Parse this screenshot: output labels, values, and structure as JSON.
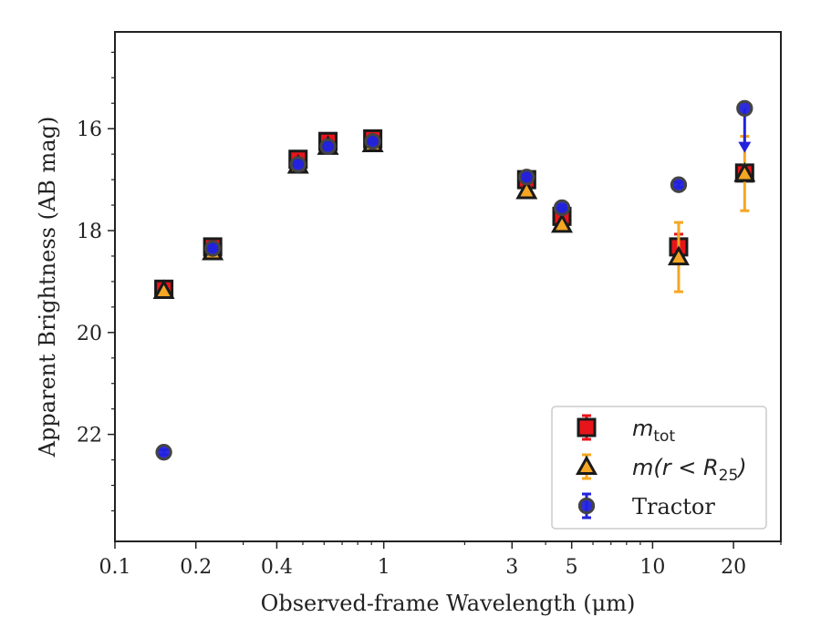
{
  "chart_data": {
    "type": "scatter",
    "xlabel": "Observed-frame Wavelength (μm)",
    "ylabel": "Apparent Brightness (AB mag)",
    "xscale": "log",
    "yinverted": true,
    "xlim": [
      0.1,
      30
    ],
    "ylim": [
      24.1,
      14.1
    ],
    "xticks": [
      {
        "value": 0.1,
        "label": "0.1"
      },
      {
        "value": 0.2,
        "label": "0.2"
      },
      {
        "value": 0.4,
        "label": "0.4"
      },
      {
        "value": 1,
        "label": "1"
      },
      {
        "value": 3,
        "label": "3"
      },
      {
        "value": 5,
        "label": "5"
      },
      {
        "value": 10,
        "label": "10"
      },
      {
        "value": 20,
        "label": "20"
      }
    ],
    "yticks": [
      {
        "value": 16,
        "label": "16"
      },
      {
        "value": 18,
        "label": "18"
      },
      {
        "value": 20,
        "label": "20"
      },
      {
        "value": 22,
        "label": "22"
      }
    ],
    "legend_position": "lower-right",
    "grid": false,
    "series": [
      {
        "name": "m_tot",
        "legend_label": {
          "base": "m",
          "sub": "tot"
        },
        "marker": "square",
        "color": "#e8141b",
        "errcolor": "#e8141b",
        "points": [
          {
            "x": 0.152,
            "y": 19.15,
            "err": 0.05
          },
          {
            "x": 0.231,
            "y": 18.32,
            "err": 0.05
          },
          {
            "x": 0.48,
            "y": 16.6,
            "err": 0.05
          },
          {
            "x": 0.62,
            "y": 16.25,
            "err": 0.08
          },
          {
            "x": 0.91,
            "y": 16.2,
            "err": 0.05
          },
          {
            "x": 3.4,
            "y": 17.0,
            "err": 0.05
          },
          {
            "x": 4.6,
            "y": 17.72,
            "err": 0.08
          },
          {
            "x": 12.5,
            "y": 18.32,
            "err": 0.25
          },
          {
            "x": 22.0,
            "y": 16.87,
            "err": 0.05
          }
        ]
      },
      {
        "name": "m(r<R25)",
        "legend_label": {
          "base": "m(r < R",
          "sub": "25",
          "tail": ")"
        },
        "marker": "triangle",
        "color": "#f5a623",
        "errcolor": "#f5a623",
        "points": [
          {
            "x": 0.152,
            "y": 19.18,
            "err": 0.05
          },
          {
            "x": 0.231,
            "y": 18.42,
            "err": 0.05
          },
          {
            "x": 0.48,
            "y": 16.72,
            "err": 0.05
          },
          {
            "x": 0.62,
            "y": 16.35,
            "err": 0.05
          },
          {
            "x": 0.91,
            "y": 16.3,
            "err": 0.05
          },
          {
            "x": 3.4,
            "y": 17.22,
            "err": 0.05
          },
          {
            "x": 4.6,
            "y": 17.88,
            "err": 0.05
          },
          {
            "x": 12.5,
            "y": 18.52,
            "err": 0.68
          },
          {
            "x": 22.0,
            "y": 16.88,
            "err": 0.73
          }
        ]
      },
      {
        "name": "Tractor",
        "legend_label": {
          "base": "Tractor"
        },
        "marker": "circle",
        "color": "#2222dd",
        "errcolor": "#2222dd",
        "points": [
          {
            "x": 0.152,
            "y": 22.35,
            "err": 0.05
          },
          {
            "x": 0.231,
            "y": 18.35,
            "err": 0.05
          },
          {
            "x": 0.48,
            "y": 16.7,
            "err": 0.05
          },
          {
            "x": 0.62,
            "y": 16.35,
            "err": 0.05
          },
          {
            "x": 0.91,
            "y": 16.25,
            "err": 0.05
          },
          {
            "x": 3.4,
            "y": 16.95,
            "err": 0.05
          },
          {
            "x": 4.6,
            "y": 17.55,
            "err": 0.05
          },
          {
            "x": 12.5,
            "y": 17.1,
            "err": 0.05
          },
          {
            "x": 22.0,
            "y": 15.6,
            "err": 0.05,
            "upper_limit_to": 16.4
          }
        ]
      }
    ]
  }
}
